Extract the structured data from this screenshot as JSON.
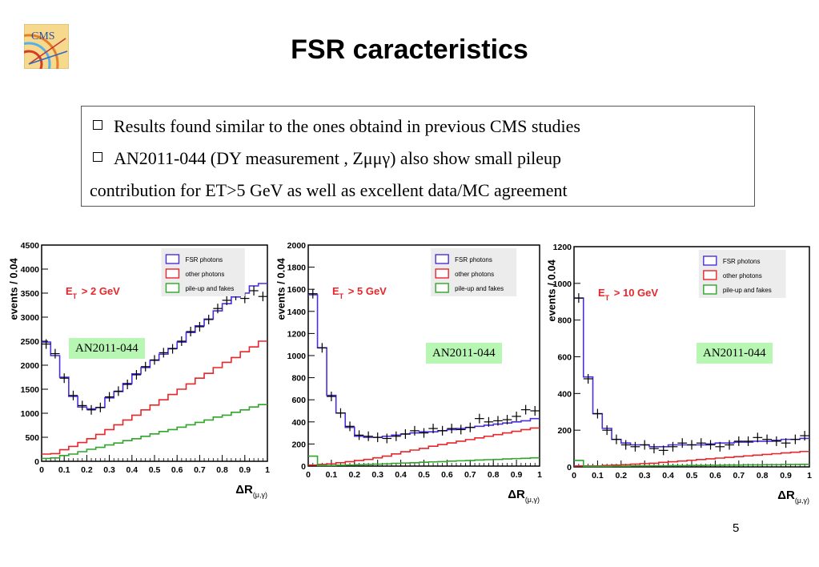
{
  "slide": {
    "title": "FSR caracteristics",
    "logo_text": "CMS",
    "page_number": "5"
  },
  "textbox": {
    "bullet1": "Results found similar to the ones obtaind in previous CMS studies",
    "bullet2": "AN2011-044 (DY measurement , Zμμγ) also show small pileup",
    "continuation": "contribution for ET>5 GeV as well as excellent data/MC agreement"
  },
  "notes": [
    "AN2011-044",
    "AN2011-044",
    "AN2011-044"
  ],
  "colors": {
    "fsr": "#4b2fdb",
    "other": "#e8262a",
    "pileup": "#2fa52a",
    "data": "#000000",
    "et_label": "#e8262a",
    "note_bg": "#b7f7b3"
  },
  "chart_data": [
    {
      "type": "line",
      "cut_label": "E_T > 2 GeV",
      "xlabel": "ΔR(μ,γ)",
      "ylabel": "events / 0.04",
      "xlim": [
        0,
        1
      ],
      "ylim": [
        0,
        4500
      ],
      "xticks": [
        "0",
        "0.1",
        "0.2",
        "0.3",
        "0.4",
        "0.5",
        "0.6",
        "0.7",
        "0.8",
        "0.9",
        "1"
      ],
      "yticks": [
        "0",
        "500",
        "1000",
        "1500",
        "2000",
        "2500",
        "3000",
        "3500",
        "4000",
        "4500"
      ],
      "legend": [
        "FSR photons",
        "other photons",
        "pile-up and fakes"
      ],
      "bin_width": 0.04,
      "series": [
        {
          "key": "fsr",
          "style": "hist",
          "values": [
            2480,
            2200,
            1750,
            1350,
            1130,
            1090,
            1120,
            1320,
            1450,
            1620,
            1820,
            1950,
            2100,
            2230,
            2350,
            2480,
            2680,
            2820,
            2960,
            3130,
            3280,
            3420,
            3500,
            3650,
            3700
          ]
        },
        {
          "key": "other",
          "style": "hist",
          "values": [
            150,
            160,
            240,
            310,
            390,
            470,
            560,
            660,
            760,
            860,
            960,
            1070,
            1170,
            1280,
            1390,
            1500,
            1610,
            1730,
            1830,
            1950,
            2060,
            2160,
            2280,
            2380,
            2500
          ]
        },
        {
          "key": "pileup",
          "style": "hist",
          "values": [
            60,
            70,
            120,
            150,
            200,
            250,
            290,
            340,
            380,
            430,
            470,
            520,
            570,
            620,
            660,
            710,
            760,
            810,
            860,
            920,
            960,
            1020,
            1070,
            1130,
            1180
          ]
        },
        {
          "key": "data",
          "style": "points",
          "values": [
            2440,
            2240,
            1730,
            1370,
            1160,
            1070,
            1120,
            1340,
            1460,
            1600,
            1800,
            1970,
            2110,
            2260,
            2340,
            2500,
            2700,
            2800,
            2950,
            3180,
            3350,
            3450,
            3390,
            3550,
            3430
          ]
        }
      ]
    },
    {
      "type": "line",
      "cut_label": "E_T > 5 GeV",
      "xlabel": "ΔR(μ,γ)",
      "ylabel": "events / 0.04",
      "xlim": [
        0,
        1
      ],
      "ylim": [
        0,
        2000
      ],
      "xticks": [
        "0",
        "0.1",
        "0.2",
        "0.3",
        "0.4",
        "0.5",
        "0.6",
        "0.7",
        "0.8",
        "0.9",
        "1"
      ],
      "yticks": [
        "0",
        "200",
        "400",
        "600",
        "800",
        "1000",
        "1200",
        "1400",
        "1600",
        "1800",
        "2000"
      ],
      "legend": [
        "FSR photons",
        "other photons",
        "pile-up and fakes"
      ],
      "bin_width": 0.04,
      "series": [
        {
          "key": "fsr",
          "style": "hist",
          "values": [
            1550,
            1070,
            640,
            480,
            350,
            270,
            260,
            260,
            270,
            280,
            290,
            300,
            310,
            310,
            320,
            330,
            340,
            350,
            360,
            370,
            380,
            390,
            400,
            410,
            430
          ]
        },
        {
          "key": "other",
          "style": "hist",
          "values": [
            10,
            15,
            20,
            30,
            40,
            50,
            60,
            75,
            90,
            110,
            130,
            145,
            160,
            180,
            195,
            210,
            225,
            240,
            255,
            270,
            285,
            300,
            315,
            330,
            345
          ]
        },
        {
          "key": "pileup",
          "style": "hist",
          "values": [
            90,
            5,
            5,
            8,
            10,
            12,
            15,
            18,
            20,
            25,
            28,
            30,
            35,
            38,
            40,
            45,
            48,
            50,
            55,
            58,
            60,
            65,
            68,
            70,
            75
          ]
        },
        {
          "key": "data",
          "style": "points",
          "values": [
            1560,
            1070,
            630,
            480,
            360,
            280,
            270,
            260,
            250,
            270,
            290,
            320,
            300,
            340,
            320,
            340,
            330,
            350,
            430,
            400,
            410,
            420,
            450,
            510,
            500
          ]
        }
      ]
    },
    {
      "type": "line",
      "cut_label": "E_T > 10 GeV",
      "xlabel": "ΔR(μ,γ)",
      "ylabel": "events / 0.04",
      "xlim": [
        0,
        1
      ],
      "ylim": [
        0,
        1200
      ],
      "xticks": [
        "0",
        "0.1",
        "0.2",
        "0.3",
        "0.4",
        "0.5",
        "0.6",
        "0.7",
        "0.8",
        "0.9",
        "1"
      ],
      "yticks": [
        "0",
        "200",
        "400",
        "600",
        "800",
        "1000",
        "1200"
      ],
      "legend": [
        "FSR photons",
        "other photons",
        "pile-up and fakes"
      ],
      "bin_width": 0.04,
      "series": [
        {
          "key": "fsr",
          "style": "hist",
          "values": [
            920,
            490,
            290,
            210,
            150,
            130,
            120,
            120,
            110,
            110,
            120,
            120,
            120,
            120,
            125,
            130,
            130,
            135,
            135,
            140,
            140,
            145,
            150,
            150,
            155
          ]
        },
        {
          "key": "other",
          "style": "hist",
          "values": [
            5,
            5,
            5,
            8,
            10,
            12,
            15,
            18,
            20,
            25,
            28,
            32,
            36,
            40,
            44,
            48,
            52,
            56,
            60,
            64,
            68,
            72,
            76,
            80,
            84
          ]
        },
        {
          "key": "pileup",
          "style": "hist",
          "values": [
            35,
            3,
            3,
            3,
            4,
            4,
            5,
            5,
            6,
            6,
            7,
            7,
            8,
            8,
            9,
            9,
            10,
            10,
            11,
            11,
            12,
            12,
            13,
            13,
            14
          ]
        },
        {
          "key": "data",
          "style": "points",
          "values": [
            920,
            480,
            290,
            200,
            150,
            120,
            110,
            120,
            100,
            90,
            110,
            130,
            120,
            130,
            120,
            110,
            120,
            140,
            140,
            160,
            150,
            140,
            130,
            150,
            170
          ]
        }
      ]
    }
  ]
}
